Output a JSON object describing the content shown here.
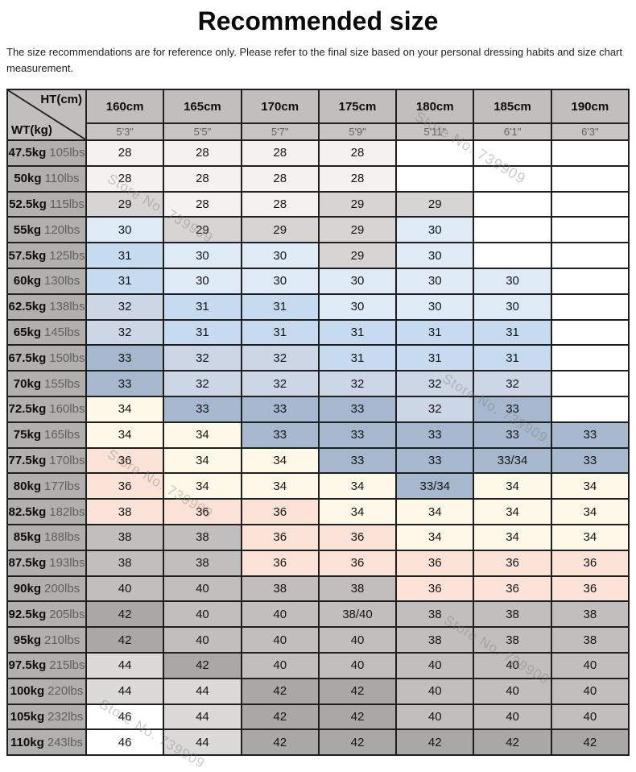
{
  "title": "Recommended size",
  "disclaimer": "The size recommendations are for reference only. Please refer to the final size based on your personal dressing habits and size chart measurement.",
  "watermark": "Store No. 739909",
  "chart_data": {
    "type": "table",
    "title": "Recommended size",
    "corner_top": "HT(cm)",
    "corner_bottom": "WT(kg)",
    "columns_cm": [
      "160cm",
      "165cm",
      "170cm",
      "175cm",
      "180cm",
      "185cm",
      "190cm"
    ],
    "columns_ft": [
      "5'3\"",
      "5'5\"",
      "5'7\"",
      "5'9\"",
      "5'11\"",
      "6'1\"",
      "6'3\""
    ],
    "palette": {
      "white": "#ffffff",
      "xlight": "#f3f2f0",
      "lgray": "#d7d5d2",
      "lblue": "#deebf7",
      "blue": "#c6dbf0",
      "lbluegray": "#cdd6e4",
      "bluegray": "#a6b8cd",
      "cream": "#fdf8e8",
      "pink": "#fae2d7",
      "mgray": "#c0bfbd",
      "dgray": "#a9a8a6",
      "l2gray": "#dbdad8"
    },
    "rows": [
      {
        "kg": "47.5kg",
        "lbs": "105lbs",
        "cells": [
          {
            "v": "28",
            "c": "xlight"
          },
          {
            "v": "28",
            "c": "xlight"
          },
          {
            "v": "28",
            "c": "xlight"
          },
          {
            "v": "28",
            "c": "xlight"
          },
          {
            "v": "",
            "c": "white"
          },
          {
            "v": "",
            "c": "white"
          },
          {
            "v": "",
            "c": "white"
          }
        ]
      },
      {
        "kg": "50kg",
        "lbs": "110lbs",
        "cells": [
          {
            "v": "28",
            "c": "xlight"
          },
          {
            "v": "28",
            "c": "xlight"
          },
          {
            "v": "28",
            "c": "xlight"
          },
          {
            "v": "28",
            "c": "xlight"
          },
          {
            "v": "",
            "c": "white"
          },
          {
            "v": "",
            "c": "white"
          },
          {
            "v": "",
            "c": "white"
          }
        ]
      },
      {
        "kg": "52.5kg",
        "lbs": "115lbs",
        "cells": [
          {
            "v": "29",
            "c": "lgray"
          },
          {
            "v": "28",
            "c": "xlight"
          },
          {
            "v": "28",
            "c": "xlight"
          },
          {
            "v": "29",
            "c": "lgray"
          },
          {
            "v": "29",
            "c": "lgray"
          },
          {
            "v": "",
            "c": "white"
          },
          {
            "v": "",
            "c": "white"
          }
        ]
      },
      {
        "kg": "55kg",
        "lbs": "120lbs",
        "cells": [
          {
            "v": "30",
            "c": "lblue"
          },
          {
            "v": "29",
            "c": "lgray"
          },
          {
            "v": "29",
            "c": "lgray"
          },
          {
            "v": "29",
            "c": "lgray"
          },
          {
            "v": "30",
            "c": "lblue"
          },
          {
            "v": "",
            "c": "white"
          },
          {
            "v": "",
            "c": "white"
          }
        ]
      },
      {
        "kg": "57.5kg",
        "lbs": "125lbs",
        "cells": [
          {
            "v": "31",
            "c": "blue"
          },
          {
            "v": "30",
            "c": "lblue"
          },
          {
            "v": "30",
            "c": "lblue"
          },
          {
            "v": "29",
            "c": "lgray"
          },
          {
            "v": "30",
            "c": "lblue"
          },
          {
            "v": "",
            "c": "white"
          },
          {
            "v": "",
            "c": "white"
          }
        ]
      },
      {
        "kg": "60kg",
        "lbs": "130lbs",
        "cells": [
          {
            "v": "31",
            "c": "blue"
          },
          {
            "v": "30",
            "c": "lblue"
          },
          {
            "v": "30",
            "c": "lblue"
          },
          {
            "v": "30",
            "c": "lblue"
          },
          {
            "v": "30",
            "c": "lblue"
          },
          {
            "v": "30",
            "c": "lblue"
          },
          {
            "v": "",
            "c": "white"
          }
        ]
      },
      {
        "kg": "62.5kg",
        "lbs": "138lbs",
        "cells": [
          {
            "v": "32",
            "c": "lbluegray"
          },
          {
            "v": "31",
            "c": "blue"
          },
          {
            "v": "31",
            "c": "blue"
          },
          {
            "v": "30",
            "c": "lblue"
          },
          {
            "v": "30",
            "c": "lblue"
          },
          {
            "v": "30",
            "c": "lblue"
          },
          {
            "v": "",
            "c": "white"
          }
        ]
      },
      {
        "kg": "65kg",
        "lbs": "145lbs",
        "cells": [
          {
            "v": "32",
            "c": "lbluegray"
          },
          {
            "v": "31",
            "c": "blue"
          },
          {
            "v": "31",
            "c": "blue"
          },
          {
            "v": "31",
            "c": "blue"
          },
          {
            "v": "31",
            "c": "blue"
          },
          {
            "v": "31",
            "c": "blue"
          },
          {
            "v": "",
            "c": "white"
          }
        ]
      },
      {
        "kg": "67.5kg",
        "lbs": "150lbs",
        "cells": [
          {
            "v": "33",
            "c": "bluegray"
          },
          {
            "v": "32",
            "c": "lbluegray"
          },
          {
            "v": "32",
            "c": "lbluegray"
          },
          {
            "v": "31",
            "c": "blue"
          },
          {
            "v": "31",
            "c": "blue"
          },
          {
            "v": "31",
            "c": "blue"
          },
          {
            "v": "",
            "c": "white"
          }
        ]
      },
      {
        "kg": "70kg",
        "lbs": "155lbs",
        "cells": [
          {
            "v": "33",
            "c": "bluegray"
          },
          {
            "v": "32",
            "c": "lbluegray"
          },
          {
            "v": "32",
            "c": "lbluegray"
          },
          {
            "v": "32",
            "c": "lbluegray"
          },
          {
            "v": "32",
            "c": "lbluegray"
          },
          {
            "v": "32",
            "c": "lbluegray"
          },
          {
            "v": "",
            "c": "white"
          }
        ]
      },
      {
        "kg": "72.5kg",
        "lbs": "160lbs",
        "cells": [
          {
            "v": "34",
            "c": "cream"
          },
          {
            "v": "33",
            "c": "bluegray"
          },
          {
            "v": "33",
            "c": "bluegray"
          },
          {
            "v": "33",
            "c": "bluegray"
          },
          {
            "v": "32",
            "c": "lbluegray"
          },
          {
            "v": "33",
            "c": "bluegray"
          },
          {
            "v": "",
            "c": "white"
          }
        ]
      },
      {
        "kg": "75kg",
        "lbs": "165lbs",
        "cells": [
          {
            "v": "34",
            "c": "cream"
          },
          {
            "v": "34",
            "c": "cream"
          },
          {
            "v": "33",
            "c": "bluegray"
          },
          {
            "v": "33",
            "c": "bluegray"
          },
          {
            "v": "33",
            "c": "bluegray"
          },
          {
            "v": "33",
            "c": "bluegray"
          },
          {
            "v": "33",
            "c": "bluegray"
          }
        ]
      },
      {
        "kg": "77.5kg",
        "lbs": "170lbs",
        "cells": [
          {
            "v": "36",
            "c": "pink"
          },
          {
            "v": "34",
            "c": "cream"
          },
          {
            "v": "34",
            "c": "cream"
          },
          {
            "v": "33",
            "c": "bluegray"
          },
          {
            "v": "33",
            "c": "bluegray"
          },
          {
            "v": "33/34",
            "c": "bluegray"
          },
          {
            "v": "33",
            "c": "bluegray"
          }
        ]
      },
      {
        "kg": "80kg",
        "lbs": "177lbs",
        "cells": [
          {
            "v": "36",
            "c": "pink"
          },
          {
            "v": "34",
            "c": "cream"
          },
          {
            "v": "34",
            "c": "cream"
          },
          {
            "v": "34",
            "c": "cream"
          },
          {
            "v": "33/34",
            "c": "bluegray"
          },
          {
            "v": "34",
            "c": "cream"
          },
          {
            "v": "34",
            "c": "cream"
          }
        ]
      },
      {
        "kg": "82.5kg",
        "lbs": "182lbs",
        "cells": [
          {
            "v": "38",
            "c": "pink"
          },
          {
            "v": "36",
            "c": "pink"
          },
          {
            "v": "36",
            "c": "pink"
          },
          {
            "v": "34",
            "c": "cream"
          },
          {
            "v": "34",
            "c": "cream"
          },
          {
            "v": "34",
            "c": "cream"
          },
          {
            "v": "34",
            "c": "cream"
          }
        ]
      },
      {
        "kg": "85kg",
        "lbs": "188lbs",
        "cells": [
          {
            "v": "38",
            "c": "mgray"
          },
          {
            "v": "38",
            "c": "mgray"
          },
          {
            "v": "36",
            "c": "pink"
          },
          {
            "v": "36",
            "c": "pink"
          },
          {
            "v": "34",
            "c": "cream"
          },
          {
            "v": "34",
            "c": "cream"
          },
          {
            "v": "34",
            "c": "cream"
          }
        ]
      },
      {
        "kg": "87.5kg",
        "lbs": "193lbs",
        "cells": [
          {
            "v": "38",
            "c": "mgray"
          },
          {
            "v": "38",
            "c": "mgray"
          },
          {
            "v": "36",
            "c": "pink"
          },
          {
            "v": "36",
            "c": "pink"
          },
          {
            "v": "36",
            "c": "pink"
          },
          {
            "v": "36",
            "c": "pink"
          },
          {
            "v": "36",
            "c": "pink"
          }
        ]
      },
      {
        "kg": "90kg",
        "lbs": "200lbs",
        "cells": [
          {
            "v": "40",
            "c": "mgray"
          },
          {
            "v": "40",
            "c": "mgray"
          },
          {
            "v": "38",
            "c": "mgray"
          },
          {
            "v": "38",
            "c": "mgray"
          },
          {
            "v": "36",
            "c": "pink"
          },
          {
            "v": "36",
            "c": "pink"
          },
          {
            "v": "36",
            "c": "pink"
          }
        ]
      },
      {
        "kg": "92.5kg",
        "lbs": "205lbs",
        "cells": [
          {
            "v": "42",
            "c": "dgray"
          },
          {
            "v": "40",
            "c": "mgray"
          },
          {
            "v": "40",
            "c": "mgray"
          },
          {
            "v": "38/40",
            "c": "mgray"
          },
          {
            "v": "38",
            "c": "mgray"
          },
          {
            "v": "38",
            "c": "mgray"
          },
          {
            "v": "38",
            "c": "mgray"
          }
        ]
      },
      {
        "kg": "95kg",
        "lbs": "210lbs",
        "cells": [
          {
            "v": "42",
            "c": "dgray"
          },
          {
            "v": "40",
            "c": "mgray"
          },
          {
            "v": "40",
            "c": "mgray"
          },
          {
            "v": "40",
            "c": "mgray"
          },
          {
            "v": "38",
            "c": "mgray"
          },
          {
            "v": "38",
            "c": "mgray"
          },
          {
            "v": "38",
            "c": "mgray"
          }
        ]
      },
      {
        "kg": "97.5kg",
        "lbs": "215lbs",
        "cells": [
          {
            "v": "44",
            "c": "l2gray"
          },
          {
            "v": "42",
            "c": "dgray"
          },
          {
            "v": "40",
            "c": "mgray"
          },
          {
            "v": "40",
            "c": "mgray"
          },
          {
            "v": "40",
            "c": "mgray"
          },
          {
            "v": "40",
            "c": "mgray"
          },
          {
            "v": "40",
            "c": "mgray"
          }
        ]
      },
      {
        "kg": "100kg",
        "lbs": "220lbs",
        "cells": [
          {
            "v": "44",
            "c": "l2gray"
          },
          {
            "v": "44",
            "c": "l2gray"
          },
          {
            "v": "42",
            "c": "dgray"
          },
          {
            "v": "42",
            "c": "dgray"
          },
          {
            "v": "40",
            "c": "mgray"
          },
          {
            "v": "40",
            "c": "mgray"
          },
          {
            "v": "40",
            "c": "mgray"
          }
        ]
      },
      {
        "kg": "105kg",
        "lbs": "232lbs",
        "cells": [
          {
            "v": "46",
            "c": "white"
          },
          {
            "v": "44",
            "c": "l2gray"
          },
          {
            "v": "42",
            "c": "dgray"
          },
          {
            "v": "42",
            "c": "dgray"
          },
          {
            "v": "40",
            "c": "mgray"
          },
          {
            "v": "40",
            "c": "mgray"
          },
          {
            "v": "40",
            "c": "mgray"
          }
        ]
      },
      {
        "kg": "110kg",
        "lbs": "243lbs",
        "cells": [
          {
            "v": "46",
            "c": "white"
          },
          {
            "v": "44",
            "c": "l2gray"
          },
          {
            "v": "42",
            "c": "dgray"
          },
          {
            "v": "42",
            "c": "dgray"
          },
          {
            "v": "42",
            "c": "dgray"
          },
          {
            "v": "42",
            "c": "dgray"
          },
          {
            "v": "42",
            "c": "dgray"
          }
        ]
      }
    ]
  }
}
